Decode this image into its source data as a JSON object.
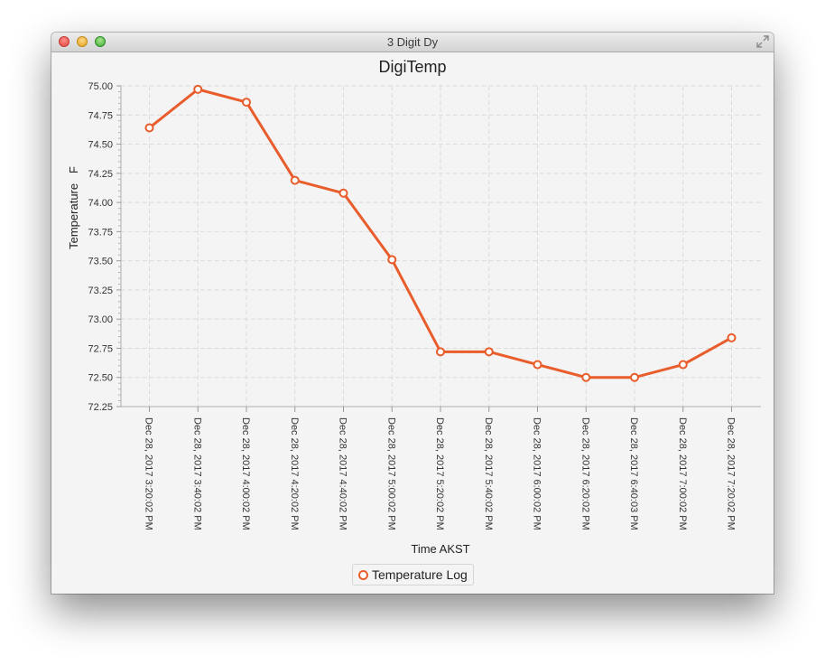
{
  "window": {
    "title": "3 Digit Dy"
  },
  "chart_data": {
    "type": "line",
    "title": "DigiTemp",
    "xlabel": "Time AKST",
    "ylabel": "Temperature   F",
    "ylim": [
      72.25,
      75.0
    ],
    "yticks": [
      "72.25",
      "72.50",
      "72.75",
      "73.00",
      "73.25",
      "73.50",
      "73.75",
      "74.00",
      "74.25",
      "74.50",
      "74.75",
      "75.00"
    ],
    "categories": [
      "Dec 28, 2017 3:20:02 PM",
      "Dec 28, 2017 3:40:02 PM",
      "Dec 28, 2017 4:00:02 PM",
      "Dec 28, 2017 4:20:02 PM",
      "Dec 28, 2017 4:40:02 PM",
      "Dec 28, 2017 5:00:02 PM",
      "Dec 28, 2017 5:20:02 PM",
      "Dec 28, 2017 5:40:02 PM",
      "Dec 28, 2017 6:00:02 PM",
      "Dec 28, 2017 6:20:02 PM",
      "Dec 28, 2017 6:40:03 PM",
      "Dec 28, 2017 7:00:02 PM",
      "Dec 28, 2017 7:20:02 PM"
    ],
    "series": [
      {
        "name": "Temperature Log",
        "color": "#e85d2b",
        "values": [
          74.64,
          74.97,
          74.86,
          74.19,
          74.08,
          73.51,
          72.72,
          72.72,
          72.61,
          72.5,
          72.5,
          72.61,
          72.84
        ]
      }
    ],
    "grid": true,
    "legend_position": "bottom"
  }
}
